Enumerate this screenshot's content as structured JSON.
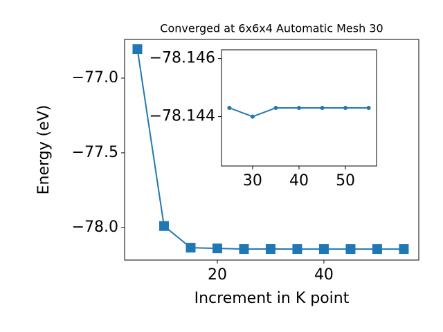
{
  "chart_data": [
    {
      "type": "line",
      "title": "Converged at 6x6x4 Automatic Mesh 30",
      "x_label": "Increment in K point",
      "y_label": "Energy (eV)",
      "x": [
        5,
        10,
        15,
        20,
        25,
        30,
        35,
        40,
        45,
        50,
        55
      ],
      "values": [
        -76.806,
        -77.99,
        -78.135,
        -78.14,
        -78.1443,
        -78.144,
        -78.1443,
        -78.1443,
        -78.1443,
        -78.1443,
        -78.1443
      ],
      "color": "#1f77b4",
      "marker": "square",
      "xlim": [
        2.6,
        57.8
      ],
      "ylim": [
        -78.218,
        -76.741
      ],
      "xticks": [
        20,
        40
      ],
      "yticks": [
        {
          "value": -78.0,
          "label": "−78.0"
        },
        {
          "value": -77.5,
          "label": "−77.5"
        },
        {
          "value": -77.0,
          "label": "−77.0"
        }
      ]
    },
    {
      "type": "line",
      "x": [
        25,
        30,
        35,
        40,
        45,
        50,
        55
      ],
      "values": [
        -78.1443,
        -78.144,
        -78.1443,
        -78.1443,
        -78.1443,
        -78.1443,
        -78.1443
      ],
      "color": "#1f77b4",
      "marker": "circle",
      "xlim": [
        23.3,
        56.7
      ],
      "ylim": [
        -78.1423,
        -78.1463
      ],
      "xticks": [
        30,
        40,
        50
      ],
      "yticks": [
        {
          "value": -78.144,
          "label": "−78.144"
        },
        {
          "value": -78.146,
          "label": "−78.146"
        }
      ]
    }
  ]
}
